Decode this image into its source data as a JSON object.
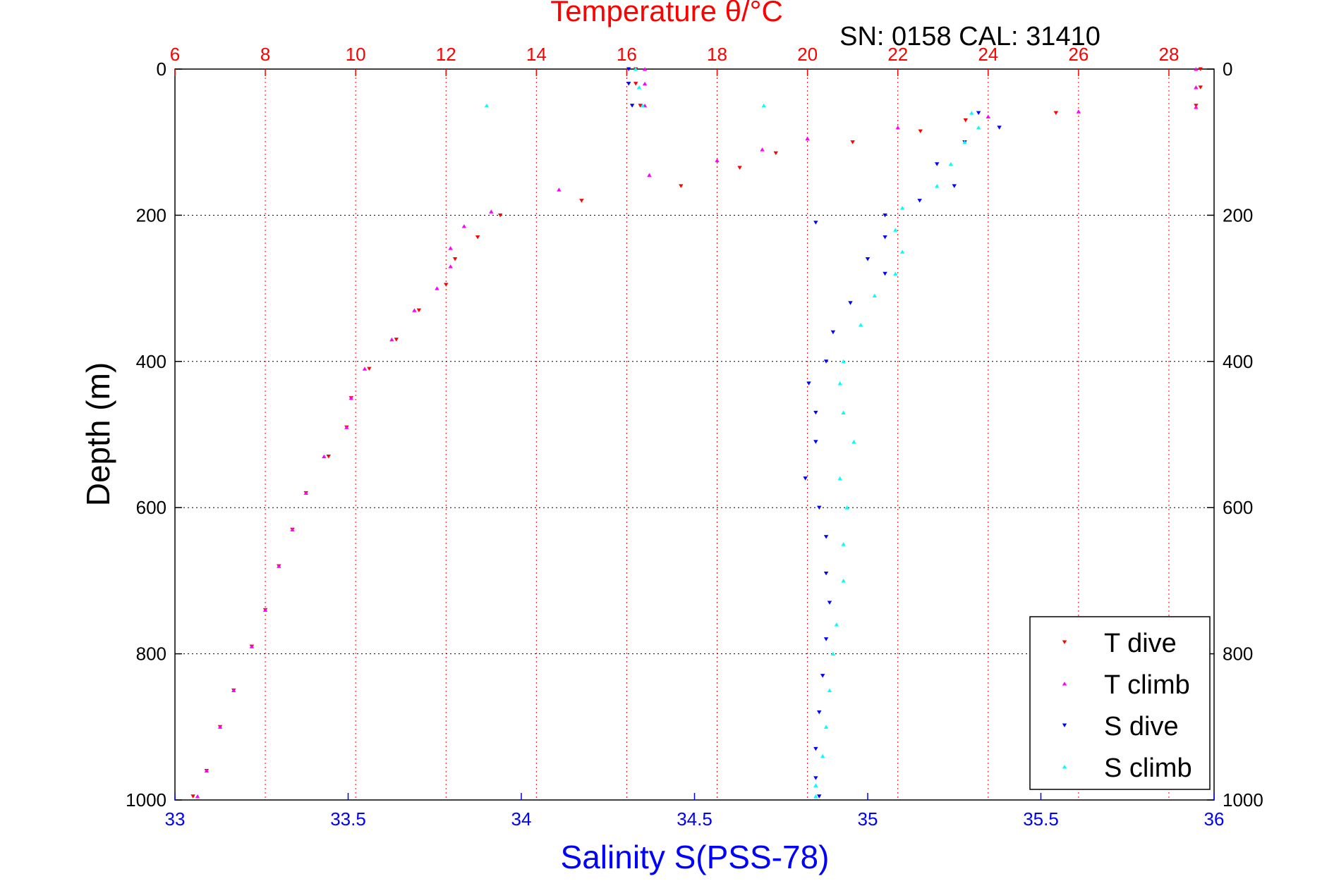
{
  "chart_data": {
    "type": "scatter",
    "title": "Temperature θ/°C",
    "subtitle": "SN: 0158  CAL: 31410",
    "ylabel": "Depth (m)",
    "xlabel": "Salinity S(PSS-78)",
    "colors": {
      "temperature_axis": "#ff0000",
      "salinity_axis": "#0000ff",
      "t_dive": "#ff0000",
      "t_climb": "#ff00ff",
      "s_dive": "#0000ff",
      "s_climb": "#00ffff",
      "grid_vertical": "#ff0000",
      "grid_horizontal": "#000000"
    },
    "y_axis": {
      "ylim": [
        0,
        1000
      ],
      "reversed": true,
      "ticks": [
        0,
        200,
        400,
        600,
        800,
        1000
      ],
      "grid": true
    },
    "temperature_axis": {
      "position": "top",
      "xlim": [
        6,
        29
      ],
      "ticks": [
        6,
        8,
        10,
        12,
        14,
        16,
        18,
        20,
        22,
        24,
        26,
        28
      ],
      "grid": true
    },
    "salinity_axis": {
      "position": "bottom",
      "xlim": [
        33,
        36
      ],
      "ticks": [
        33,
        33.5,
        34,
        34.5,
        35,
        35.5,
        36
      ],
      "grid": false
    },
    "legend": {
      "placement": "bottom-right",
      "entries": [
        "T dive",
        "T climb",
        "S dive",
        "S climb"
      ]
    },
    "series": [
      {
        "name": "T dive",
        "axis": "temperature",
        "marker": "triangle-down",
        "points": [
          [
            16.2,
            0
          ],
          [
            16.2,
            20
          ],
          [
            16.3,
            50
          ],
          [
            28.7,
            0
          ],
          [
            28.7,
            25
          ],
          [
            28.6,
            50
          ],
          [
            25.5,
            60
          ],
          [
            23.5,
            70
          ],
          [
            22.5,
            85
          ],
          [
            21.0,
            100
          ],
          [
            19.3,
            115
          ],
          [
            18.5,
            135
          ],
          [
            17.2,
            160
          ],
          [
            15.0,
            180
          ],
          [
            13.2,
            200
          ],
          [
            12.7,
            230
          ],
          [
            12.2,
            260
          ],
          [
            12.0,
            295
          ],
          [
            11.4,
            330
          ],
          [
            10.9,
            370
          ],
          [
            10.3,
            410
          ],
          [
            9.9,
            450
          ],
          [
            9.8,
            490
          ],
          [
            9.4,
            530
          ],
          [
            8.9,
            580
          ],
          [
            8.6,
            630
          ],
          [
            8.3,
            680
          ],
          [
            8.0,
            740
          ],
          [
            7.7,
            790
          ],
          [
            7.3,
            850
          ],
          [
            7.0,
            900
          ],
          [
            6.7,
            960
          ],
          [
            6.4,
            995
          ]
        ]
      },
      {
        "name": "T climb",
        "axis": "temperature",
        "marker": "triangle-up",
        "points": [
          [
            16.4,
            0
          ],
          [
            16.4,
            20
          ],
          [
            16.4,
            50
          ],
          [
            28.6,
            0
          ],
          [
            28.6,
            25
          ],
          [
            28.6,
            52
          ],
          [
            26.0,
            58
          ],
          [
            24.0,
            65
          ],
          [
            22.0,
            80
          ],
          [
            20.0,
            95
          ],
          [
            19.0,
            110
          ],
          [
            18.0,
            125
          ],
          [
            16.5,
            145
          ],
          [
            14.5,
            165
          ],
          [
            13.0,
            195
          ],
          [
            12.4,
            215
          ],
          [
            12.1,
            245
          ],
          [
            12.1,
            270
          ],
          [
            11.8,
            300
          ],
          [
            11.3,
            330
          ],
          [
            10.8,
            370
          ],
          [
            10.2,
            410
          ],
          [
            9.9,
            450
          ],
          [
            9.8,
            490
          ],
          [
            9.3,
            530
          ],
          [
            8.9,
            580
          ],
          [
            8.6,
            630
          ],
          [
            8.3,
            680
          ],
          [
            8.0,
            740
          ],
          [
            7.7,
            790
          ],
          [
            7.3,
            850
          ],
          [
            7.0,
            900
          ],
          [
            6.7,
            960
          ],
          [
            6.5,
            995
          ]
        ]
      },
      {
        "name": "S dive",
        "axis": "salinity",
        "marker": "triangle-down",
        "points": [
          [
            34.31,
            0
          ],
          [
            34.31,
            20
          ],
          [
            34.32,
            50
          ],
          [
            35.32,
            60
          ],
          [
            35.38,
            80
          ],
          [
            35.28,
            100
          ],
          [
            35.2,
            130
          ],
          [
            35.25,
            160
          ],
          [
            35.15,
            180
          ],
          [
            35.05,
            200
          ],
          [
            34.85,
            210
          ],
          [
            35.05,
            230
          ],
          [
            35.0,
            260
          ],
          [
            35.05,
            280
          ],
          [
            34.95,
            320
          ],
          [
            34.9,
            360
          ],
          [
            34.88,
            400
          ],
          [
            34.83,
            430
          ],
          [
            34.85,
            470
          ],
          [
            34.85,
            510
          ],
          [
            34.82,
            560
          ],
          [
            34.86,
            600
          ],
          [
            34.88,
            640
          ],
          [
            34.88,
            690
          ],
          [
            34.89,
            730
          ],
          [
            34.88,
            780
          ],
          [
            34.87,
            830
          ],
          [
            34.86,
            880
          ],
          [
            34.85,
            930
          ],
          [
            34.85,
            970
          ],
          [
            34.86,
            995
          ]
        ]
      },
      {
        "name": "S climb",
        "axis": "salinity",
        "marker": "triangle-up",
        "points": [
          [
            34.33,
            0
          ],
          [
            34.34,
            25
          ],
          [
            34.35,
            50
          ],
          [
            33.9,
            50
          ],
          [
            34.7,
            50
          ],
          [
            35.3,
            60
          ],
          [
            35.32,
            80
          ],
          [
            35.28,
            100
          ],
          [
            35.24,
            130
          ],
          [
            35.2,
            160
          ],
          [
            35.1,
            190
          ],
          [
            35.08,
            220
          ],
          [
            35.1,
            250
          ],
          [
            35.08,
            280
          ],
          [
            35.02,
            310
          ],
          [
            34.98,
            350
          ],
          [
            34.93,
            400
          ],
          [
            34.92,
            430
          ],
          [
            34.93,
            470
          ],
          [
            34.96,
            510
          ],
          [
            34.92,
            560
          ],
          [
            34.94,
            600
          ],
          [
            34.93,
            650
          ],
          [
            34.93,
            700
          ],
          [
            34.91,
            760
          ],
          [
            34.9,
            800
          ],
          [
            34.89,
            850
          ],
          [
            34.88,
            900
          ],
          [
            34.87,
            940
          ],
          [
            34.85,
            980
          ],
          [
            34.85,
            995
          ]
        ]
      }
    ]
  }
}
